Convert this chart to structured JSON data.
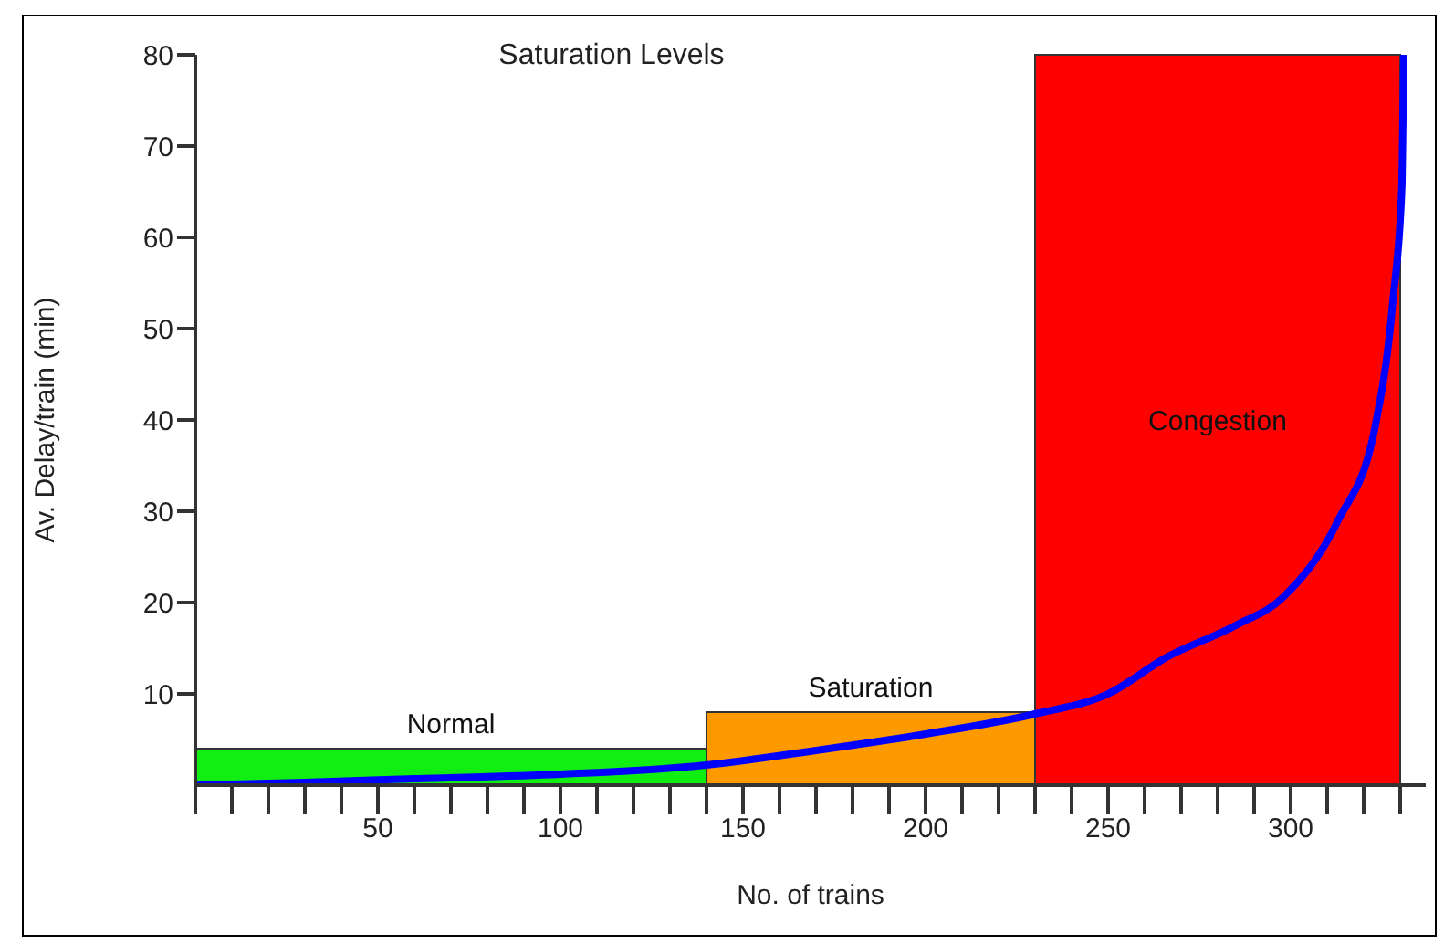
{
  "chart_data": {
    "type": "histogram",
    "title": "Saturation Levels",
    "xlabel": "No. of trains",
    "ylabel": "Av. Delay/train (min)",
    "xlim": [
      0,
      337
    ],
    "ylim": [
      0,
      80
    ],
    "xticks": [
      {
        "value": 0,
        "label": null
      },
      {
        "value": 10,
        "label": null
      },
      {
        "value": 20,
        "label": null
      },
      {
        "value": 30,
        "label": null
      },
      {
        "value": 40,
        "label": null
      },
      50,
      {
        "value": 60,
        "label": null
      },
      {
        "value": 70,
        "label": null
      },
      {
        "value": 80,
        "label": null
      },
      {
        "value": 90,
        "label": null
      },
      100,
      {
        "value": 110,
        "label": null
      },
      {
        "value": 120,
        "label": null
      },
      {
        "value": 130,
        "label": null
      },
      {
        "value": 140,
        "label": null
      },
      150,
      {
        "value": 160,
        "label": null
      },
      {
        "value": 170,
        "label": null
      },
      {
        "value": 180,
        "label": null
      },
      {
        "value": 190,
        "label": null
      },
      200,
      {
        "value": 210,
        "label": null
      },
      {
        "value": 220,
        "label": null
      },
      {
        "value": 230,
        "label": null
      },
      {
        "value": 240,
        "label": null
      },
      250,
      {
        "value": 260,
        "label": null
      },
      {
        "value": 270,
        "label": null
      },
      {
        "value": 280,
        "label": null
      },
      {
        "value": 290,
        "label": null
      },
      300,
      {
        "value": 310,
        "label": null
      },
      {
        "value": 320,
        "label": null
      },
      {
        "value": 330,
        "label": null
      }
    ],
    "yticks": [
      10,
      20,
      30,
      40,
      50,
      60,
      70,
      80
    ],
    "series": [
      {
        "bins": [
          0,
          140,
          230,
          330
        ],
        "values": [
          4,
          8,
          80
        ],
        "colors": [
          "#11ee11",
          "#ff9900",
          "#ff0000"
        ]
      },
      {
        "type": "line",
        "color": "#0000ff",
        "x": [
          0,
          30,
          60,
          100,
          140,
          170,
          200,
          230,
          250,
          266,
          285,
          298,
          313,
          323,
          328,
          330.5,
          331
        ],
        "values": [
          0,
          0.3,
          0.7,
          1.2,
          2.2,
          3.8,
          5.6,
          7.8,
          10,
          14,
          17.5,
          20.6,
          29,
          39,
          53,
          66,
          80
        ]
      }
    ],
    "annotations": [
      "Normal",
      "Saturation",
      "Congestion"
    ]
  }
}
